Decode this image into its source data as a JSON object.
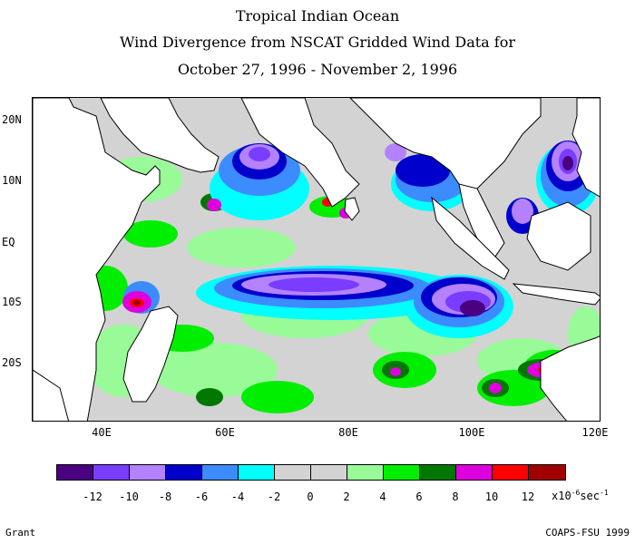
{
  "title": {
    "line1": "Tropical Indian Ocean",
    "line2": "Wind Divergence from NSCAT Gridded Wind Data for",
    "line3": "October 27, 1996 - November 2, 1996"
  },
  "map": {
    "lat_labels": [
      "20N",
      "10N",
      "EQ",
      "10S",
      "20S"
    ],
    "lon_labels": [
      "40E",
      "60E",
      "80E",
      "100E",
      "120E"
    ],
    "lon_range": [
      30,
      122
    ],
    "lat_range": [
      -30,
      23
    ],
    "land_color": "#ffffff",
    "coast_color": "#000000"
  },
  "colorbar": {
    "colors": [
      "#4b0082",
      "#7a3cff",
      "#b482ff",
      "#0000cd",
      "#3c8cff",
      "#00ffff",
      "#d3d3d3",
      "#d3d3d3",
      "#98fb98",
      "#00ee00",
      "#007800",
      "#dd00dd",
      "#ff0000",
      "#a00000"
    ],
    "tick_labels": [
      "-12",
      "-10",
      "-8",
      "-6",
      "-4",
      "-2",
      "0",
      "2",
      "4",
      "6",
      "8",
      "10",
      "12"
    ],
    "unit_prefix": "x10",
    "unit_exp": "-6",
    "unit_suffix": "sec",
    "unit_exp2": "-1"
  },
  "footer": {
    "left": "Grant",
    "right": "COAPS-FSU 1999"
  }
}
